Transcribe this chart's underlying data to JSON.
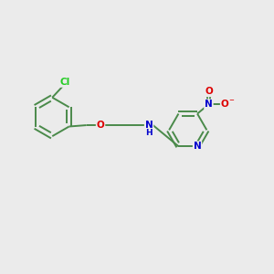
{
  "bg_color": "#ebebeb",
  "bond_color": "#4a8a4a",
  "bond_width": 1.4,
  "atom_colors": {
    "C": "#4a8a4a",
    "Cl": "#22cc22",
    "O": "#dd0000",
    "N": "#0000cc",
    "H": "#4a8a4a",
    "N_plus": "#0000cc",
    "O_minus": "#dd0000"
  },
  "figsize": [
    3.0,
    3.0
  ],
  "dpi": 100
}
